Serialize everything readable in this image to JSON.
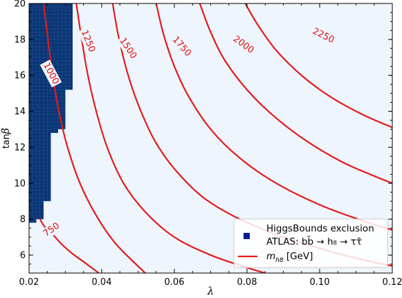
{
  "chart_data": {
    "type": "contour",
    "xlabel": "λ",
    "ylabel_prefix": "tan",
    "ylabel_symbol": "β",
    "xlim": [
      0.02,
      0.12
    ],
    "ylim": [
      5,
      20
    ],
    "x_ticks": [
      "0.02",
      "0.04",
      "0.06",
      "0.08",
      "0.10",
      "0.12"
    ],
    "y_ticks": [
      "6",
      "8",
      "10",
      "12",
      "14",
      "16",
      "18",
      "20"
    ],
    "background_color": "#eef5fd",
    "exclusion_color": "#0b3675",
    "contour_color": "#e41a1a",
    "excluded_region": {
      "name": "HiggsBounds exclusion",
      "boundary_steps": [
        {
          "tanb": 7.8,
          "lambda": 0.022
        },
        {
          "tanb": 8.0,
          "lambda": 0.024
        },
        {
          "tanb": 9.0,
          "lambda": 0.026
        },
        {
          "tanb": 12.8,
          "lambda": 0.028
        },
        {
          "tanb": 13.0,
          "lambda": 0.03
        },
        {
          "tanb": 15.2,
          "lambda": 0.032
        },
        {
          "tanb": 20.0,
          "lambda": 0.034
        }
      ]
    },
    "contours": [
      {
        "level": "750",
        "label": "750",
        "points": [
          [
            0.023,
            8.0
          ],
          [
            0.0242,
            7.6
          ],
          [
            0.0258,
            7.3
          ],
          [
            0.0272,
            7.0
          ],
          [
            0.029,
            6.6
          ],
          [
            0.0318,
            6.1
          ],
          [
            0.0352,
            5.6
          ],
          [
            0.0392,
            5.0
          ]
        ]
      },
      {
        "level": "1000",
        "label": "1000",
        "points": [
          [
            0.024,
            20.0
          ],
          [
            0.0252,
            18.0
          ],
          [
            0.0265,
            16.0
          ],
          [
            0.0282,
            14.0
          ],
          [
            0.0306,
            12.0
          ],
          [
            0.034,
            10.0
          ],
          [
            0.0385,
            8.2
          ],
          [
            0.044,
            6.6
          ],
          [
            0.052,
            5.0
          ]
        ]
      },
      {
        "level": "1250",
        "label": "1250",
        "points": [
          [
            0.033,
            20.0
          ],
          [
            0.0345,
            18.0
          ],
          [
            0.0362,
            16.0
          ],
          [
            0.0385,
            14.0
          ],
          [
            0.0415,
            12.0
          ],
          [
            0.046,
            10.0
          ],
          [
            0.052,
            8.4
          ],
          [
            0.06,
            7.0
          ],
          [
            0.07,
            6.0
          ],
          [
            0.08,
            5.3
          ],
          [
            0.085,
            5.0
          ]
        ]
      },
      {
        "level": "1500",
        "label": "1500",
        "points": [
          [
            0.043,
            20.0
          ],
          [
            0.0446,
            18.2
          ],
          [
            0.047,
            16.2
          ],
          [
            0.05,
            14.4
          ],
          [
            0.0545,
            12.4
          ],
          [
            0.06,
            10.8
          ],
          [
            0.068,
            9.2
          ],
          [
            0.078,
            8.0
          ],
          [
            0.09,
            7.0
          ],
          [
            0.103,
            6.2
          ],
          [
            0.115,
            5.6
          ],
          [
            0.12,
            5.4
          ]
        ]
      },
      {
        "level": "1750",
        "label": "1750",
        "points": [
          [
            0.055,
            20.0
          ],
          [
            0.057,
            18.3
          ],
          [
            0.06,
            16.5
          ],
          [
            0.064,
            14.8
          ],
          [
            0.07,
            13.0
          ],
          [
            0.078,
            11.4
          ],
          [
            0.088,
            10.0
          ],
          [
            0.1,
            8.8
          ],
          [
            0.112,
            7.9
          ],
          [
            0.12,
            7.4
          ]
        ]
      },
      {
        "level": "2000",
        "label": "2000",
        "points": [
          [
            0.067,
            20.0
          ],
          [
            0.07,
            18.4
          ],
          [
            0.074,
            16.8
          ],
          [
            0.08,
            15.2
          ],
          [
            0.087,
            13.8
          ],
          [
            0.096,
            12.4
          ],
          [
            0.106,
            11.2
          ],
          [
            0.115,
            10.4
          ],
          [
            0.12,
            10.0
          ]
        ]
      },
      {
        "level": "2250",
        "label": "2250",
        "points": [
          [
            0.0795,
            20.0
          ],
          [
            0.083,
            18.8
          ],
          [
            0.088,
            17.4
          ],
          [
            0.095,
            16.0
          ],
          [
            0.103,
            14.8
          ],
          [
            0.112,
            13.8
          ],
          [
            0.12,
            13.1
          ]
        ]
      }
    ],
    "contour_labels": [
      {
        "text": "1000",
        "x": 0.026,
        "y": 16.1,
        "angle": 62
      },
      {
        "text": "1250",
        "x": 0.0362,
        "y": 17.9,
        "angle": 68
      },
      {
        "text": "1500",
        "x": 0.0472,
        "y": 17.5,
        "angle": 56
      },
      {
        "text": "1750",
        "x": 0.062,
        "y": 17.6,
        "angle": 48
      },
      {
        "text": "2000",
        "x": 0.079,
        "y": 17.7,
        "angle": 36
      },
      {
        "text": "2250",
        "x": 0.101,
        "y": 18.2,
        "angle": 26
      },
      {
        "text": "750",
        "x": 0.0262,
        "y": 7.4,
        "angle": -35
      }
    ],
    "legend": {
      "position": "lower-right",
      "entries": [
        {
          "marker": "square",
          "label": "HiggsBounds exclusion"
        },
        {
          "marker": "none",
          "label": "ATLAS: bb̄ → h₈ → ττ̄"
        },
        {
          "marker": "line",
          "label": "m",
          "subscript": "h8",
          "suffix": " [GeV]"
        }
      ]
    }
  }
}
